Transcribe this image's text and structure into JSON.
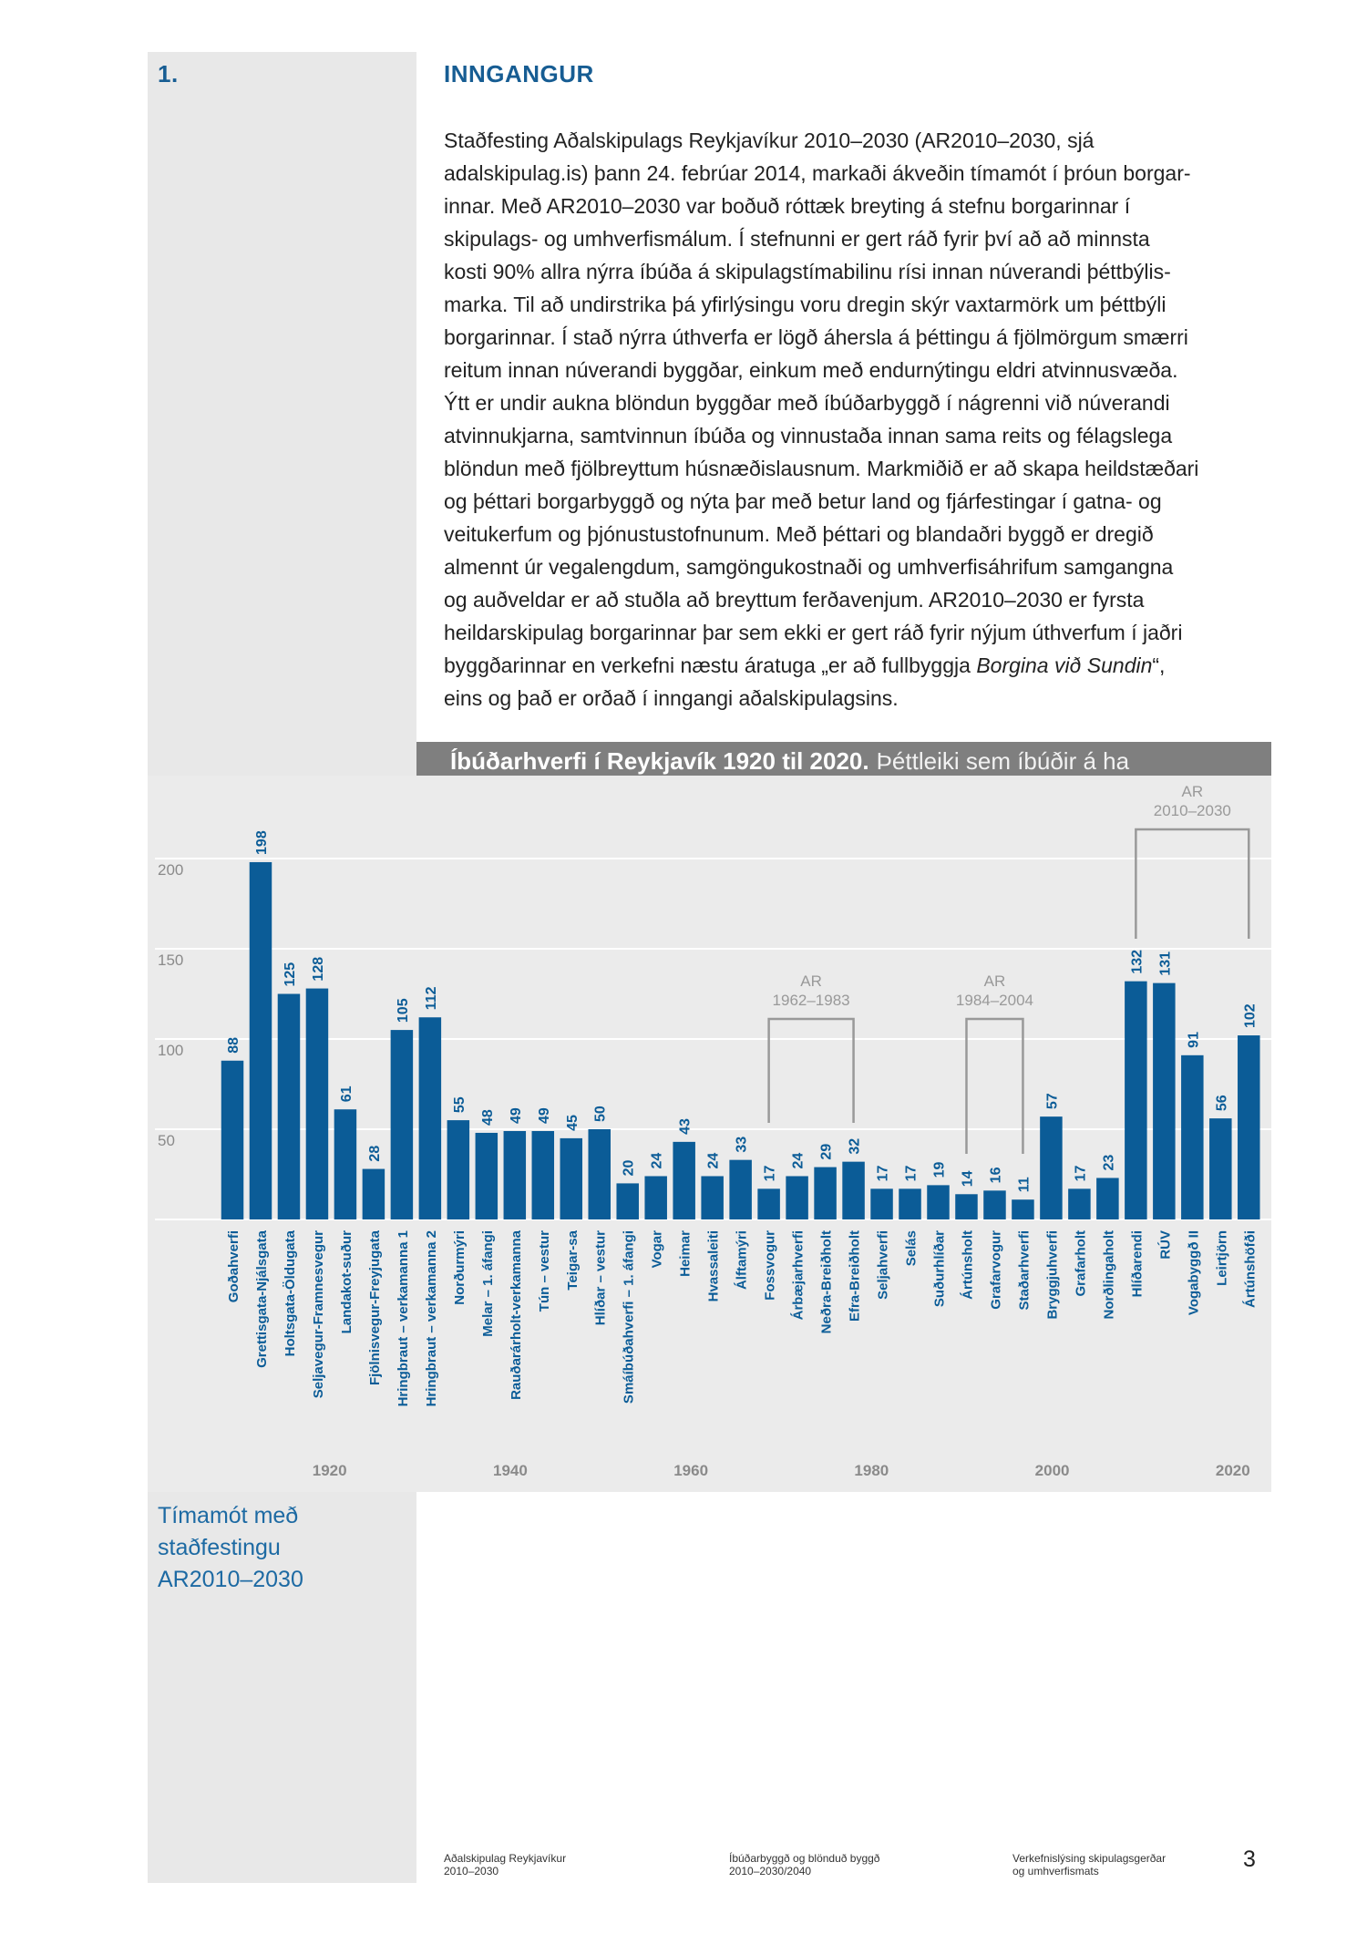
{
  "section": {
    "number": "1.",
    "title": "INNGANGUR"
  },
  "body_lines": [
    "Staðfesting Aðalskipulags Reykjavíkur 2010–2030 (AR2010–2030, sjá",
    "adalskipulag.is) þann 24. febrúar 2014, markaði ákveðin tímamót í þróun borgar-",
    "innar. Með AR2010–2030 var boðuð róttæk breyting á stefnu borgarinnar í",
    "skipulags- og umhverfismálum. Í stefnunni er gert ráð fyrir því að að minnsta",
    "kosti 90% allra nýrra íbúða á skipulagstímabilinu rísi innan núverandi þéttbýlis-",
    "marka. Til að undirstrika þá yfirlýsingu voru dregin skýr vaxtarmörk um þéttbýli",
    "borgarinnar. Í stað nýrra úthverfa er lögð áhersla á þéttingu á fjölmörgum smærri",
    "reitum innan núverandi byggðar, einkum með endurnýtingu eldri atvinnusvæða.",
    "Ýtt er undir aukna blöndun byggðar með íbúðarbyggð í nágrenni við núverandi",
    "atvinnukjarna, samtvinnun íbúða og vinnustaða innan sama reits og félagslega",
    "blöndun með fjölbreyttum húsnæðislausnum. Markmiðið er að skapa heildstæðari",
    "og þéttari borgarbyggð og nýta þar með betur land og fjárfestingar í gatna- og",
    "veitukerfum og þjónustustofnunum. Með þéttari og blandaðri byggð er dregið",
    "almennt úr vegalengdum, samgöngukostnaði og umhverfisáhrifum samgangna",
    "og auðveldar er að stuðla að breyttum ferðavenjum. AR2010–2030 er fyrsta",
    "heildarskipulag borgarinnar þar sem ekki er gert ráð fyrir nýjum úthverfum í jaðri",
    [
      "byggðarinnar en verkefni næstu áratuga „er að fullbyggja ",
      "Borgina við Sundin",
      "“,"
    ],
    "eins og það er orðað í inngangi aðalskipulagsins."
  ],
  "chart_data": {
    "type": "bar",
    "title": "Íbúðarhverfi í Reykjavík 1920 til 2020.",
    "subtitle": "Þéttleiki sem íbúðir á ha",
    "categories": [
      "Goðahverfi",
      "Grettisgata-Njálsgata",
      "Holtsgata-Öldugata",
      "Seljavegur-Framnesvegur",
      "Landakot-suður",
      "Fjölnisvegur-Freyjugata",
      "Hringbraut – verkamanna 1",
      "Hringbraut – verkamanna 2",
      "Norðurmýri",
      "Melar – 1. áfangi",
      "Rauðarárholt-verkamanna",
      "Tún – vestur",
      "Teigar-sa",
      "Hlíðar – vestur",
      "Smáíbúðahverfi – 1. áfangi",
      "Vogar",
      "Heimar",
      "Hvassaleiti",
      "Álftamýri",
      "Fossvogur",
      "Árbæjarhverfi",
      "Neðra-Breiðholt",
      "Efra-Breiðholt",
      "Seljahverfi",
      "Selás",
      "Suðurhlíðar",
      "Ártúnsholt",
      "Grafarvogur",
      "Staðarhverfi",
      "Bryggjuhverfi",
      "Grafarholt",
      "Norðlingaholt",
      "Hlíðarendi",
      "RÚV",
      "Vogabyggð II",
      "Leirtjörn",
      "Ártúnshöfði"
    ],
    "values": [
      88,
      198,
      125,
      128,
      61,
      28,
      105,
      112,
      55,
      48,
      49,
      49,
      45,
      50,
      20,
      24,
      43,
      24,
      33,
      17,
      24,
      29,
      32,
      17,
      17,
      19,
      14,
      16,
      11,
      57,
      17,
      23,
      132,
      131,
      91,
      56,
      102
    ],
    "color": "#0b5c97",
    "ylim": [
      0,
      200
    ],
    "yticks": [
      50,
      100,
      150,
      200
    ],
    "grid": true,
    "time_axis": {
      "xlim": [
        1908,
        2023
      ],
      "xticks": [
        1920,
        1940,
        1960,
        1980,
        2000,
        2020
      ]
    },
    "annotations": [
      {
        "lines": [
          "AR",
          "1962–1983"
        ],
        "from": "Fossvogur",
        "to": "Efra-Breiðholt"
      },
      {
        "lines": [
          "AR",
          "1984–2004"
        ],
        "from": "Ártúnsholt",
        "to": "Staðarhverfi"
      },
      {
        "lines": [
          "AR",
          "2010–2030"
        ],
        "from": "Hlíðarendi",
        "to": "Ártúnshöfði"
      }
    ]
  },
  "sidebar_note": [
    "Tímamót með",
    "staðfestingu",
    "AR2010–2030"
  ],
  "footer": {
    "columns": [
      [
        "Aðalskipulag Reykjavíkur",
        "2010–2030"
      ],
      [
        "Íbúðarbyggð og blönduð byggð",
        "2010–2030/2040"
      ],
      [
        "Verkefnislýsing skipulagsgerðar",
        "og umhverfismats"
      ]
    ],
    "page": "3"
  }
}
